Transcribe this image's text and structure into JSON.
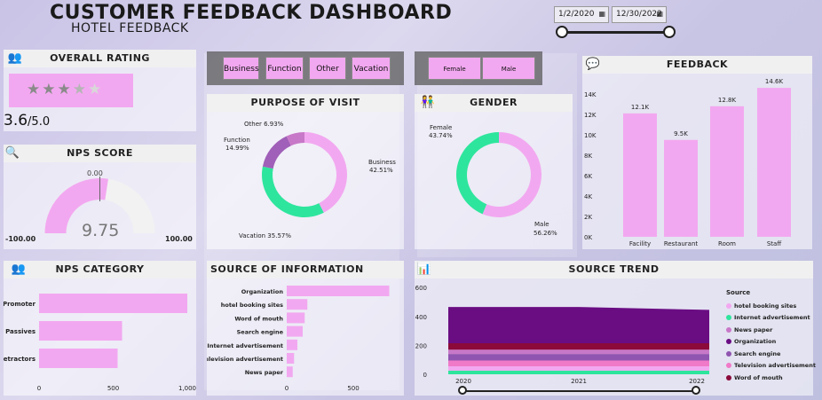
{
  "header": {
    "title": "CUSTOMER FEEDBACK DASHBOARD",
    "subtitle": "HOTEL FEEDBACK"
  },
  "date_filter": {
    "start": "1/2/2020",
    "end": "12/30/2022"
  },
  "overall_rating": {
    "title": "OVERALL RATING",
    "value": "3.6",
    "suffix": "/5.0",
    "stars_filled": 3.6,
    "stars_total": 5
  },
  "nps_score": {
    "title": "NPS SCORE",
    "value": "9.75",
    "min_label": "-100.00",
    "max_label": "100.00",
    "target_label": "0.00",
    "score": 9.75
  },
  "purpose_buttons": [
    "Business",
    "Function",
    "Other",
    "Vacation"
  ],
  "gender_buttons": [
    "Female",
    "Male"
  ],
  "purpose_of_visit": {
    "title": "PURPOSE OF VISIT",
    "labels": {
      "other": "Other 6.93%",
      "function_name": "Function",
      "function_pct": "14.99%",
      "business_name": "Business",
      "business_pct": "42.51%",
      "vacation": "Vacation 35.57%"
    }
  },
  "gender": {
    "title": "GENDER",
    "labels": {
      "female_name": "Female",
      "female_pct": "43.74%",
      "male_name": "Male",
      "male_pct": "56.26%"
    }
  },
  "feedback": {
    "title": "FEEDBACK"
  },
  "nps_category": {
    "title": "NPS CATEGORY",
    "ticks": [
      "0",
      "500",
      "1,000"
    ]
  },
  "source_of_information": {
    "title": "SOURCE OF INFORMATION",
    "ticks": [
      "0",
      "500"
    ]
  },
  "source_trend": {
    "title": "SOURCE TREND",
    "legend_title": "Source",
    "yticks": [
      "600",
      "400",
      "200",
      "0"
    ],
    "xticks": [
      "2020",
      "2021",
      "2022"
    ]
  },
  "colors": {
    "pink": "#f2a8f0",
    "green": "#2ee59d",
    "purple": "#a05fb8",
    "mauve": "#c878c8",
    "dark_purple": "#6a0d83",
    "maroon": "#8b0a3a"
  },
  "chart_data": [
    {
      "type": "pie",
      "title": "PURPOSE OF VISIT",
      "categories": [
        "Business",
        "Vacation",
        "Function",
        "Other"
      ],
      "values": [
        42.51,
        35.57,
        14.99,
        6.93
      ],
      "colors": [
        "#f2a8f0",
        "#2ee59d",
        "#a05fb8",
        "#c878c8"
      ]
    },
    {
      "type": "pie",
      "title": "GENDER",
      "categories": [
        "Male",
        "Female"
      ],
      "values": [
        56.26,
        43.74
      ],
      "colors": [
        "#f2a8f0",
        "#2ee59d"
      ]
    },
    {
      "type": "bar",
      "title": "FEEDBACK",
      "categories": [
        "Facility",
        "Restaurant",
        "Room",
        "Staff"
      ],
      "values": [
        12100,
        9500,
        12800,
        14600
      ],
      "data_labels": [
        "12.1K",
        "9.5K",
        "12.8K",
        "14.6K"
      ],
      "yticks": [
        "14K",
        "12K",
        "10K",
        "8K",
        "6K",
        "4K",
        "2K",
        "0K"
      ],
      "ylim": [
        0,
        14000
      ]
    },
    {
      "type": "bar",
      "orientation": "horizontal",
      "title": "NPS CATEGORY",
      "categories": [
        "Promoter",
        "Passives",
        "Detractors"
      ],
      "values": [
        1000,
        560,
        530
      ],
      "xlim": [
        0,
        1000
      ]
    },
    {
      "type": "bar",
      "orientation": "horizontal",
      "title": "SOURCE OF INFORMATION",
      "categories": [
        "Organization",
        "hotel booking sites",
        "Word of mouth",
        "Search engine",
        "Internet advertisement",
        "Television advertisement",
        "News paper"
      ],
      "values": [
        770,
        155,
        135,
        120,
        80,
        55,
        45
      ],
      "xlim": [
        0,
        800
      ]
    },
    {
      "type": "area",
      "title": "SOURCE TREND",
      "x": [
        "2020",
        "2021",
        "2022"
      ],
      "ylim": [
        0,
        650
      ],
      "series": [
        {
          "name": "hotel booking sites",
          "color": "#f2a8f0",
          "values": [
            30,
            30,
            30
          ]
        },
        {
          "name": "Internet advertisement",
          "color": "#2ee59d",
          "values": [
            25,
            25,
            25
          ]
        },
        {
          "name": "News paper",
          "color": "#c878c8",
          "values": [
            30,
            30,
            30
          ]
        },
        {
          "name": "Organization",
          "color": "#6a0d83",
          "values": [
            250,
            250,
            230
          ]
        },
        {
          "name": "Search engine",
          "color": "#9055b0",
          "values": [
            45,
            45,
            45
          ]
        },
        {
          "name": "Television advertisement",
          "color": "#f07ac8",
          "values": [
            40,
            40,
            40
          ]
        },
        {
          "name": "Word of mouth",
          "color": "#8b0a3a",
          "values": [
            45,
            45,
            45
          ]
        }
      ]
    }
  ]
}
